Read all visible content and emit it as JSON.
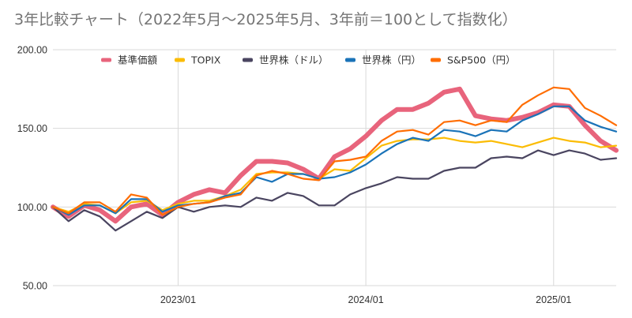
{
  "chart_data": {
    "type": "line",
    "title": "3年比較チャート（2022年5月～2025年5月、3年前＝100として指数化）",
    "xlabel": "",
    "ylabel": "",
    "ylim": [
      50,
      200
    ],
    "yticks": [
      {
        "value": 200,
        "label": "200.00"
      },
      {
        "value": 150,
        "label": "150.00"
      },
      {
        "value": 100,
        "label": "100.00"
      },
      {
        "value": 50,
        "label": "50.00"
      }
    ],
    "x_start": "2022/05",
    "x_end": "2025/05",
    "x": [
      "2022/05",
      "2022/06",
      "2022/07",
      "2022/08",
      "2022/09",
      "2022/10",
      "2022/11",
      "2022/12",
      "2023/01",
      "2023/02",
      "2023/03",
      "2023/04",
      "2023/05",
      "2023/06",
      "2023/07",
      "2023/08",
      "2023/09",
      "2023/10",
      "2023/11",
      "2023/12",
      "2024/01",
      "2024/02",
      "2024/03",
      "2024/04",
      "2024/05",
      "2024/06",
      "2024/07",
      "2024/08",
      "2024/09",
      "2024/10",
      "2024/11",
      "2024/12",
      "2025/01",
      "2025/02",
      "2025/03",
      "2025/04",
      "2025/05"
    ],
    "xticks": [
      {
        "index": 8,
        "label": "2023/01"
      },
      {
        "index": 20,
        "label": "2024/01"
      },
      {
        "index": 32,
        "label": "2025/01"
      }
    ],
    "grid": true,
    "legend_position": "top",
    "series": [
      {
        "name": "基準価額",
        "color": "#e8647c",
        "emphasis": true,
        "values": [
          100,
          94,
          101,
          98,
          91,
          100,
          102,
          95,
          103,
          108,
          111,
          109,
          120,
          129,
          129,
          128,
          124,
          118,
          132,
          137,
          145,
          155,
          162,
          162,
          166,
          173,
          175,
          158,
          156,
          155,
          157,
          160,
          165,
          164,
          152,
          142,
          136
        ]
      },
      {
        "name": "TOPIX",
        "color": "#fbbc04",
        "emphasis": false,
        "values": [
          100,
          97,
          102,
          101,
          96,
          103,
          104,
          98,
          102,
          104,
          104,
          107,
          111,
          121,
          122,
          122,
          121,
          118,
          124,
          123,
          131,
          139,
          142,
          143,
          143,
          144,
          142,
          141,
          142,
          140,
          138,
          141,
          144,
          142,
          141,
          138,
          139
        ]
      },
      {
        "name": "世界株（ドル）",
        "color": "#4a4560",
        "emphasis": false,
        "values": [
          100,
          91,
          98,
          94,
          85,
          91,
          97,
          93,
          100,
          97,
          100,
          101,
          100,
          106,
          104,
          109,
          107,
          101,
          101,
          108,
          112,
          115,
          119,
          118,
          118,
          123,
          125,
          125,
          131,
          132,
          131,
          136,
          133,
          136,
          134,
          130,
          131
        ]
      },
      {
        "name": "世界株（円）",
        "color": "#1a73b8",
        "emphasis": false,
        "values": [
          100,
          95,
          101,
          101,
          96,
          105,
          105,
          97,
          101,
          102,
          103,
          107,
          109,
          119,
          116,
          121,
          121,
          118,
          119,
          122,
          127,
          134,
          140,
          144,
          142,
          149,
          148,
          145,
          149,
          148,
          155,
          159,
          164,
          164,
          155,
          151,
          148
        ]
      },
      {
        "name": "S&P500（円）",
        "color": "#ff6d01",
        "emphasis": false,
        "values": [
          100,
          96,
          103,
          103,
          97,
          108,
          106,
          95,
          100,
          102,
          103,
          106,
          108,
          120,
          123,
          121,
          118,
          117,
          129,
          130,
          132,
          142,
          148,
          149,
          146,
          154,
          155,
          152,
          155,
          154,
          165,
          171,
          176,
          175,
          163,
          158,
          152
        ]
      }
    ]
  }
}
